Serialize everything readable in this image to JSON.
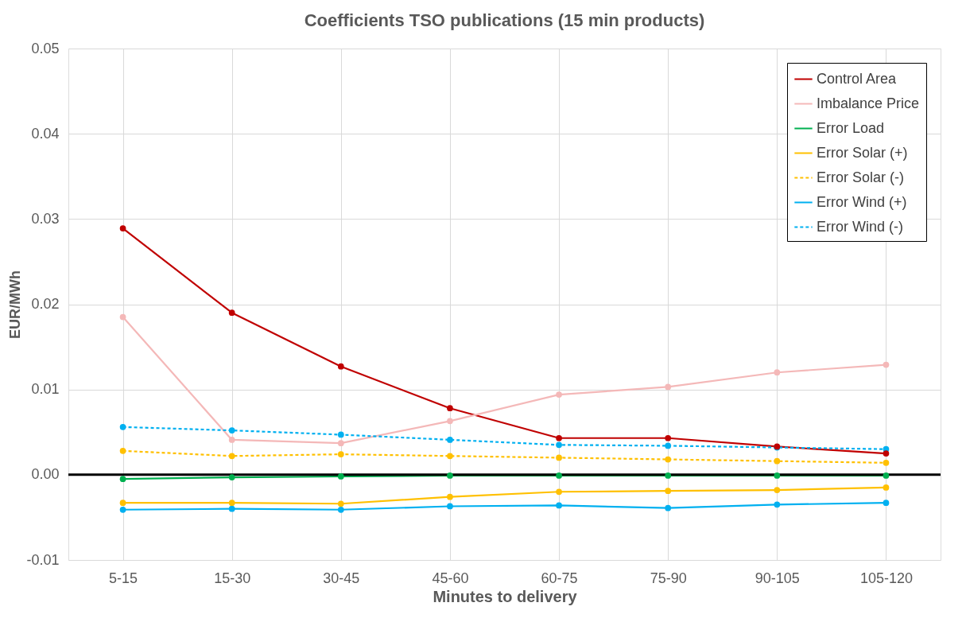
{
  "chart_data": {
    "type": "line",
    "title": "Coefficients  TSO publications  (15 min products)",
    "xlabel": "Minutes to delivery",
    "ylabel": "EUR/MWh",
    "categories": [
      "5-15",
      "15-30",
      "30-45",
      "45-60",
      "60-75",
      "75-90",
      "90-105",
      "105-120"
    ],
    "series": [
      {
        "name": "Control Area",
        "color": "#c00000",
        "line_style": "solid",
        "values": [
          0.0289,
          0.019,
          0.0127,
          0.0078,
          0.0043,
          0.0043,
          0.0033,
          0.0025
        ]
      },
      {
        "name": "Imbalance Price",
        "color": "#f4b8b8",
        "line_style": "solid",
        "values": [
          0.0185,
          0.0041,
          0.0037,
          0.0063,
          0.0094,
          0.0103,
          0.012,
          0.0129
        ]
      },
      {
        "name": "Error Load",
        "color": "#00b050",
        "line_style": "solid",
        "values": [
          -0.0005,
          -0.0003,
          -0.0002,
          -0.0001,
          -0.0001,
          -0.0001,
          -0.0001,
          -0.0001
        ]
      },
      {
        "name": "Error Solar (+)",
        "color": "#ffc000",
        "line_style": "solid",
        "values": [
          -0.0033,
          -0.0033,
          -0.0034,
          -0.0026,
          -0.002,
          -0.0019,
          -0.0018,
          -0.0015
        ]
      },
      {
        "name": "Error Solar (-)",
        "color": "#ffc000",
        "line_style": "dashed",
        "values": [
          0.0028,
          0.0022,
          0.0024,
          0.0022,
          0.002,
          0.0018,
          0.0016,
          0.0014
        ]
      },
      {
        "name": "Error Wind (+)",
        "color": "#00b0f0",
        "line_style": "solid",
        "values": [
          -0.0041,
          -0.004,
          -0.0041,
          -0.0037,
          -0.0036,
          -0.0039,
          -0.0035,
          -0.0033
        ]
      },
      {
        "name": "Error Wind (-)",
        "color": "#00b0f0",
        "line_style": "dashed",
        "values": [
          0.0056,
          0.0052,
          0.0047,
          0.0041,
          0.0035,
          0.0034,
          0.0032,
          0.003
        ]
      }
    ],
    "ylim": [
      -0.01,
      0.05
    ],
    "yticks": [
      {
        "value": -0.01,
        "label": "-0.01"
      },
      {
        "value": 0,
        "label": "0.00"
      },
      {
        "value": 0.01,
        "label": "0.01"
      },
      {
        "value": 0.02,
        "label": "0.02"
      },
      {
        "value": 0.03,
        "label": "0.03"
      },
      {
        "value": 0.04,
        "label": "0.04"
      },
      {
        "value": 0.05,
        "label": "0.05"
      }
    ],
    "ref_lines": [
      {
        "axis": "y",
        "value": 0,
        "color": "#000000"
      }
    ],
    "grid": true,
    "legend": "top right",
    "marker": "circle"
  }
}
